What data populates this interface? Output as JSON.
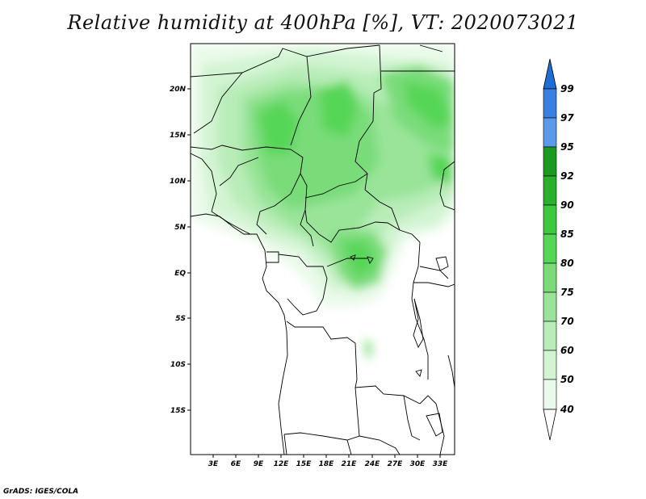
{
  "title": "Relative humidity at 400hPa [%], VT: 2020073021",
  "credit": "GrADS: IGES/COLA",
  "map": {
    "lon_ticks": [
      "3E",
      "6E",
      "9E",
      "12E",
      "15E",
      "18E",
      "21E",
      "24E",
      "27E",
      "30E",
      "33E"
    ],
    "lat_ticks": [
      "20N",
      "15N",
      "10N",
      "5N",
      "EQ",
      "5S",
      "10S",
      "15S"
    ]
  },
  "colorbar": {
    "levels": [
      "99",
      "97",
      "95",
      "92",
      "90",
      "85",
      "80",
      "75",
      "70",
      "60",
      "50",
      "40"
    ],
    "colors": {
      "99": "#1f6ed6",
      "97": "#3b7fe0",
      "95": "#5a9ae8",
      "92": "#1d9a1d",
      "90": "#2bb02b",
      "85": "#3ec83e",
      "80": "#56d656",
      "75": "#79dc79",
      "70": "#99e499",
      "60": "#b8ecb8",
      "50": "#d2f4d2",
      "40": "#eafaea"
    }
  }
}
